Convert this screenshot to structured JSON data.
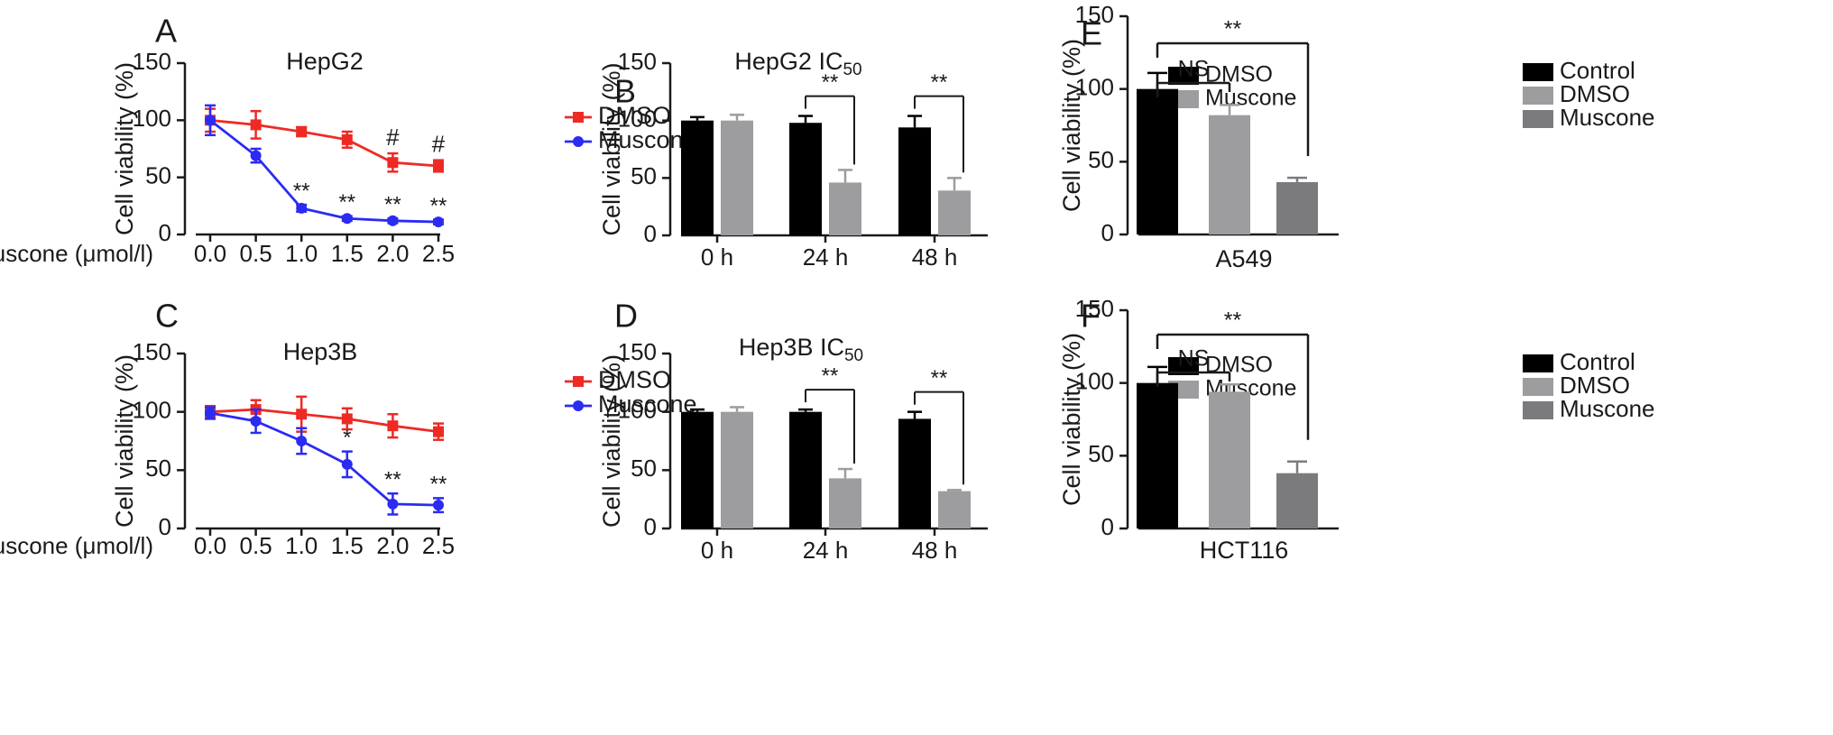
{
  "figure": {
    "colors": {
      "dmso_line": "#ee2a24",
      "muscone_line": "#2b2bf2",
      "black_bar": "#000000",
      "gray_bar": "#9d9d9f",
      "dark_gray_bar": "#7b7b7d",
      "axis": "#1a1a1a"
    },
    "x_prefix": "Muscone (μmol/l)"
  },
  "chart_data": [
    {
      "panel": "A",
      "type": "line",
      "title": "HepG2",
      "ylabel": "Cell viability (%)",
      "xlabel": "Muscone (μmol/l)",
      "x": [
        0.0,
        0.5,
        1.0,
        1.5,
        2.0,
        2.5
      ],
      "xticklabels": [
        "0.0",
        "0.5",
        "1.0",
        "1.5",
        "2.0",
        "2.5"
      ],
      "ylim": [
        0,
        150
      ],
      "yticks": [
        0,
        50,
        100,
        150
      ],
      "legend": {
        "position": "right"
      },
      "series": [
        {
          "name": "DMSO",
          "color": "#ee2a24",
          "marker": "square",
          "values": [
            100,
            96,
            90,
            83,
            63,
            60
          ],
          "errors": [
            10,
            12,
            4,
            7,
            8,
            5
          ],
          "annotations": [
            "",
            "",
            "",
            "",
            "#",
            "#"
          ]
        },
        {
          "name": "Muscone",
          "color": "#2b2bf2",
          "marker": "circle",
          "values": [
            100,
            69,
            23,
            14,
            12,
            11
          ],
          "errors": [
            13,
            6,
            3,
            2,
            2,
            2
          ],
          "annotations": [
            "",
            "",
            "**",
            "**",
            "**",
            "**"
          ]
        }
      ]
    },
    {
      "panel": "B",
      "type": "bar",
      "title": "HepG2 IC",
      "title_sub": "50",
      "ylabel": "Cell viability (%)",
      "categories": [
        "0 h",
        "24 h",
        "48 h"
      ],
      "ylim": [
        0,
        150
      ],
      "yticks": [
        0,
        50,
        100,
        150
      ],
      "legend": {
        "position": "top-right"
      },
      "series": [
        {
          "name": "DMSO",
          "color": "#000000",
          "values": [
            100,
            98,
            94
          ],
          "errors": [
            3,
            6,
            10
          ]
        },
        {
          "name": "Muscone",
          "color": "#9d9d9f",
          "values": [
            100,
            46,
            39
          ],
          "errors": [
            5,
            11,
            11
          ]
        }
      ],
      "brackets": [
        {
          "category": 1,
          "label": "**"
        },
        {
          "category": 2,
          "label": "**"
        }
      ]
    },
    {
      "panel": "C",
      "type": "line",
      "title": "Hep3B",
      "ylabel": "Cell viability (%)",
      "xlabel": "Muscone (μmol/l)",
      "x": [
        0.0,
        0.5,
        1.0,
        1.5,
        2.0,
        2.5
      ],
      "xticklabels": [
        "0.0",
        "0.5",
        "1.0",
        "1.5",
        "2.0",
        "2.5"
      ],
      "ylim": [
        0,
        150
      ],
      "yticks": [
        0,
        50,
        100,
        150
      ],
      "legend": {
        "position": "top-right"
      },
      "series": [
        {
          "name": "DMSO",
          "color": "#ee2a24",
          "marker": "square",
          "values": [
            100,
            102,
            98,
            94,
            88,
            83
          ],
          "errors": [
            5,
            8,
            15,
            9,
            10,
            7
          ],
          "annotations": [
            "",
            "",
            "",
            "",
            "",
            ""
          ]
        },
        {
          "name": "Muscone",
          "color": "#2b2bf2",
          "marker": "circle",
          "values": [
            99,
            92,
            75,
            55,
            21,
            20
          ],
          "errors": [
            5,
            10,
            11,
            11,
            9,
            6
          ],
          "annotations": [
            "",
            "",
            "",
            "*",
            "**",
            "**"
          ]
        }
      ]
    },
    {
      "panel": "D",
      "type": "bar",
      "title": "Hep3B IC",
      "title_sub": "50",
      "ylabel": "Cell viability (%)",
      "categories": [
        "0 h",
        "24 h",
        "48 h"
      ],
      "ylim": [
        0,
        150
      ],
      "yticks": [
        0,
        50,
        100,
        150
      ],
      "legend": {
        "position": "top-right"
      },
      "series": [
        {
          "name": "DMSO",
          "color": "#000000",
          "values": [
            100,
            100,
            94
          ],
          "errors": [
            2,
            2,
            6
          ]
        },
        {
          "name": "Muscone",
          "color": "#9d9d9f",
          "values": [
            100,
            43,
            32
          ],
          "errors": [
            4,
            8,
            1
          ]
        }
      ],
      "brackets": [
        {
          "category": 1,
          "label": "**"
        },
        {
          "category": 2,
          "label": "**"
        }
      ]
    },
    {
      "panel": "E",
      "type": "bar",
      "title": "",
      "ylabel": "Cell viability (%)",
      "xlabel": "A549",
      "ylim": [
        0,
        150
      ],
      "yticks": [
        0,
        50,
        100,
        150
      ],
      "legend": {
        "position": "right"
      },
      "series": [
        {
          "name": "Control",
          "color": "#000000",
          "value": 100,
          "error": 11
        },
        {
          "name": "DMSO",
          "color": "#9d9d9f",
          "value": 82,
          "error": 7
        },
        {
          "name": "Muscone",
          "color": "#7b7b7d",
          "value": 36,
          "error": 3
        }
      ],
      "comparisons": [
        {
          "label": "NS",
          "to": 1
        },
        {
          "label": "**",
          "to": 2
        }
      ]
    },
    {
      "panel": "F",
      "type": "bar",
      "title": "",
      "ylabel": "Cell viability (%)",
      "xlabel": "HCT116",
      "ylim": [
        0,
        150
      ],
      "yticks": [
        0,
        50,
        100,
        150
      ],
      "legend": {
        "position": "right"
      },
      "series": [
        {
          "name": "Control",
          "color": "#000000",
          "value": 100,
          "error": 11
        },
        {
          "name": "DMSO",
          "color": "#9d9d9f",
          "value": 94,
          "error": 5
        },
        {
          "name": "Muscone",
          "color": "#7b7b7d",
          "value": 38,
          "error": 8
        }
      ],
      "comparisons": [
        {
          "label": "NS",
          "to": 1
        },
        {
          "label": "**",
          "to": 2
        }
      ]
    }
  ]
}
